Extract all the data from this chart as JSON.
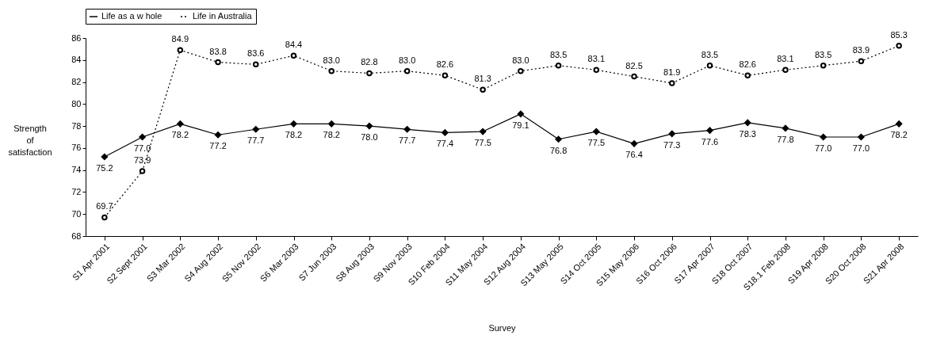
{
  "chart_data": {
    "type": "line",
    "xlabel": "Survey",
    "ylabel": "Strength of satisfaction",
    "categories": [
      "S1 Apr 2001",
      "S2 Sept 2001",
      "S3 Mar 2002",
      "S4 Aug 2002",
      "S5 Nov 2002",
      "S6 Mar 2003",
      "S7 Jun 2003",
      "S8 Aug 2003",
      "S9 Nov 2003",
      "S10 Feb 2004",
      "S11 May 2004",
      "S12 Aug 2004",
      "S13 May 2005",
      "S14 Oct 2005",
      "S15 May 2006",
      "S16 Oct 2006",
      "S17 Apr 2007",
      "S18 Oct 2007",
      "S18.1 Feb 2008",
      "S19 Apr 2008",
      "S20 Oct 2008",
      "S21 Apr 2008"
    ],
    "series": [
      {
        "name": "Life as a w hole",
        "color": "#000000",
        "marker": "diamond",
        "line_style": "solid",
        "values": [
          75.2,
          77.0,
          78.2,
          77.2,
          77.7,
          78.2,
          78.2,
          78.0,
          77.7,
          77.4,
          77.5,
          79.1,
          76.8,
          77.5,
          76.4,
          77.3,
          77.6,
          78.3,
          77.8,
          77.0,
          77.0,
          78.2
        ],
        "value_labels": [
          "75.2",
          "77.0",
          "78.2",
          "77.2",
          "77.7",
          "78.2",
          "78.2",
          "78.0",
          "77.7",
          "77.4",
          "77.5",
          "79.1",
          "76.8",
          "77.5",
          "76.4",
          "77.3",
          "77.6",
          "78.3",
          "77.8",
          "77.0",
          "77.0",
          "78.2"
        ]
      },
      {
        "name": "Life in Australia",
        "color": "#000000",
        "marker": "circle",
        "line_style": "dotted",
        "values": [
          69.7,
          73.9,
          84.9,
          83.8,
          83.6,
          84.4,
          83.0,
          82.8,
          83.0,
          82.6,
          81.3,
          83.0,
          83.5,
          83.1,
          82.5,
          81.9,
          83.5,
          82.6,
          83.1,
          83.5,
          83.9,
          85.3
        ],
        "value_labels": [
          "69.7",
          "73.9",
          "84.9",
          "83.8",
          "83.6",
          "84.4",
          "83.0",
          "82.8",
          "83.0",
          "82.6",
          "81.3",
          "83.0",
          "83.5",
          "83.1",
          "82.5",
          "81.9",
          "83.5",
          "82.6",
          "83.1",
          "83.5",
          "83.9",
          "85.3"
        ]
      }
    ],
    "ylim": [
      68,
      86
    ],
    "yticks": [
      68,
      70,
      72,
      74,
      76,
      78,
      80,
      82,
      84,
      86
    ],
    "grid": false,
    "legend": "top"
  }
}
